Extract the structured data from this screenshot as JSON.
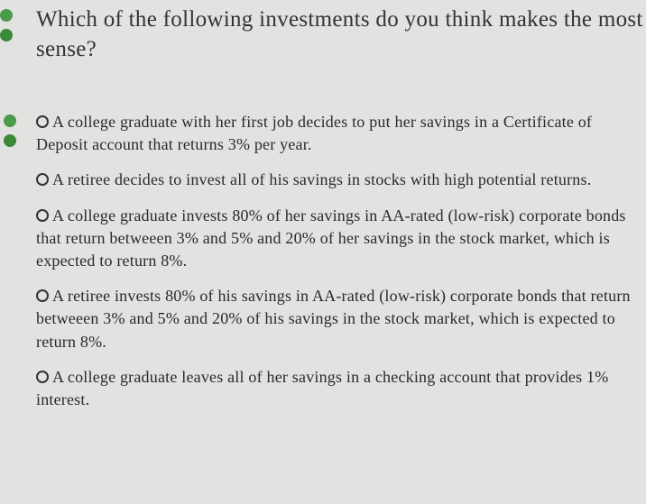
{
  "question": {
    "text": "Which of the following investments do you think makes the most sense?",
    "text_color": "#333333",
    "fontsize": 25,
    "bullet_colors": [
      "#4a9b4a",
      "#3a8a3a"
    ]
  },
  "options": {
    "fontsize": 18,
    "text_color": "#2a2a2a",
    "radio_border": "#333333",
    "side_bullet_colors": [
      "#4a9b4a",
      "#3a8a3a"
    ],
    "items": [
      "A college graduate with her first job decides to put her savings in a Certificate of Deposit account that returns 3% per year.",
      "A retiree decides to invest all of his savings in stocks with high potential returns.",
      "A college graduate invests 80% of her savings in AA-rated (low-risk) corporate bonds that return betweeen 3% and 5% and 20% of her savings in the stock market, which is expected to return 8%.",
      "A retiree invests 80% of his savings in AA-rated (low-risk) corporate bonds that return betweeen 3% and 5% and 20% of his savings in the stock market, which is expected to return 8%.",
      "A college graduate leaves all of her savings in a checking account that provides 1% interest."
    ]
  },
  "background_color": "#e2e2e0"
}
